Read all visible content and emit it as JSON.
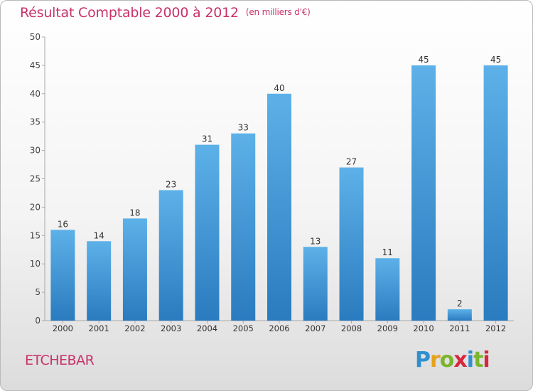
{
  "title": "Résultat Comptable 2000 à 2012",
  "unit": "(en milliers d'€)",
  "commune": "ETCHEBAR",
  "logo": {
    "letters": [
      "P",
      "r",
      "o",
      "x",
      "i",
      "t",
      "i"
    ],
    "colors": [
      "#2f8fd0",
      "#e4a21e",
      "#7ab52d",
      "#d8263d",
      "#2f8fd0",
      "#7ab52d",
      "#d8263d"
    ]
  },
  "colors": {
    "title": "#c8326a",
    "bar_top": "#5db1e8",
    "bar_bottom": "#2a7bbf"
  },
  "chart_data": {
    "type": "bar",
    "categories": [
      "2000",
      "2001",
      "2002",
      "2003",
      "2004",
      "2005",
      "2006",
      "2007",
      "2008",
      "2009",
      "2010",
      "2011",
      "2012"
    ],
    "values": [
      16,
      14,
      18,
      23,
      31,
      33,
      40,
      13,
      27,
      11,
      45,
      2,
      45
    ],
    "ylim": [
      0,
      50
    ],
    "yticks": [
      0,
      5,
      10,
      15,
      20,
      25,
      30,
      35,
      40,
      45,
      50
    ],
    "grid": false,
    "data_labels": true
  }
}
